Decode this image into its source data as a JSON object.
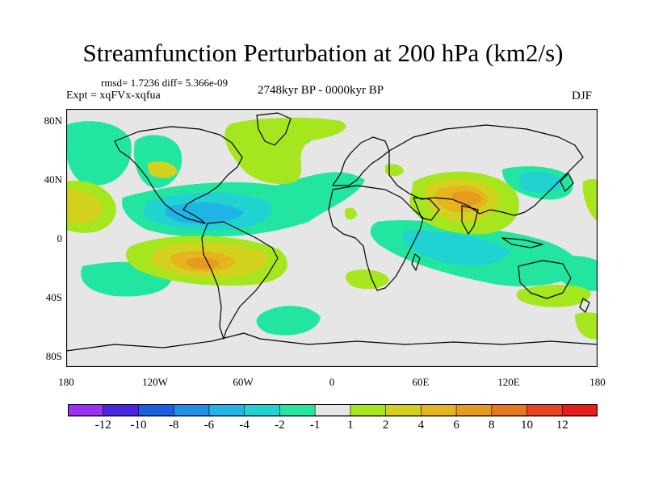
{
  "title": "Streamfunction Perturbation at 200 hPa (km2/s)",
  "stats": "rmsd= 1.7236 diff= 5.366e-09",
  "experiment": "Expt = xqFVx-xqfua",
  "period": "2748kyr BP - 0000kyr BP",
  "season": "DJF",
  "lat_labels": [
    "80N",
    "40N",
    "0",
    "40S",
    "80S"
  ],
  "lon_labels": [
    "180",
    "120W",
    "60W",
    "0",
    "60E",
    "120E",
    "180"
  ],
  "colorbar": {
    "labels": [
      "-12",
      "-10",
      "-8",
      "-6",
      "-4",
      "-2",
      "-1",
      "1",
      "2",
      "4",
      "6",
      "8",
      "10",
      "12"
    ],
    "colors": [
      "#9a32f0",
      "#4b24e0",
      "#1e5ee0",
      "#1e90e6",
      "#22b4e6",
      "#20d2d2",
      "#22e6a0",
      "#e6e6e6",
      "#a6e61e",
      "#d2d21e",
      "#e6b41e",
      "#e69a1e",
      "#e6781e",
      "#e6461e",
      "#e61e1e"
    ]
  },
  "palette": {
    "neutral": "#e6e6e6",
    "neg1": "#22e6a0",
    "neg2": "#20d2d2",
    "neg4": "#1eb4e6",
    "pos1": "#a6e61e",
    "pos2": "#d2d21e",
    "pos4": "#e6b41e",
    "pos6": "#e69a1e"
  }
}
